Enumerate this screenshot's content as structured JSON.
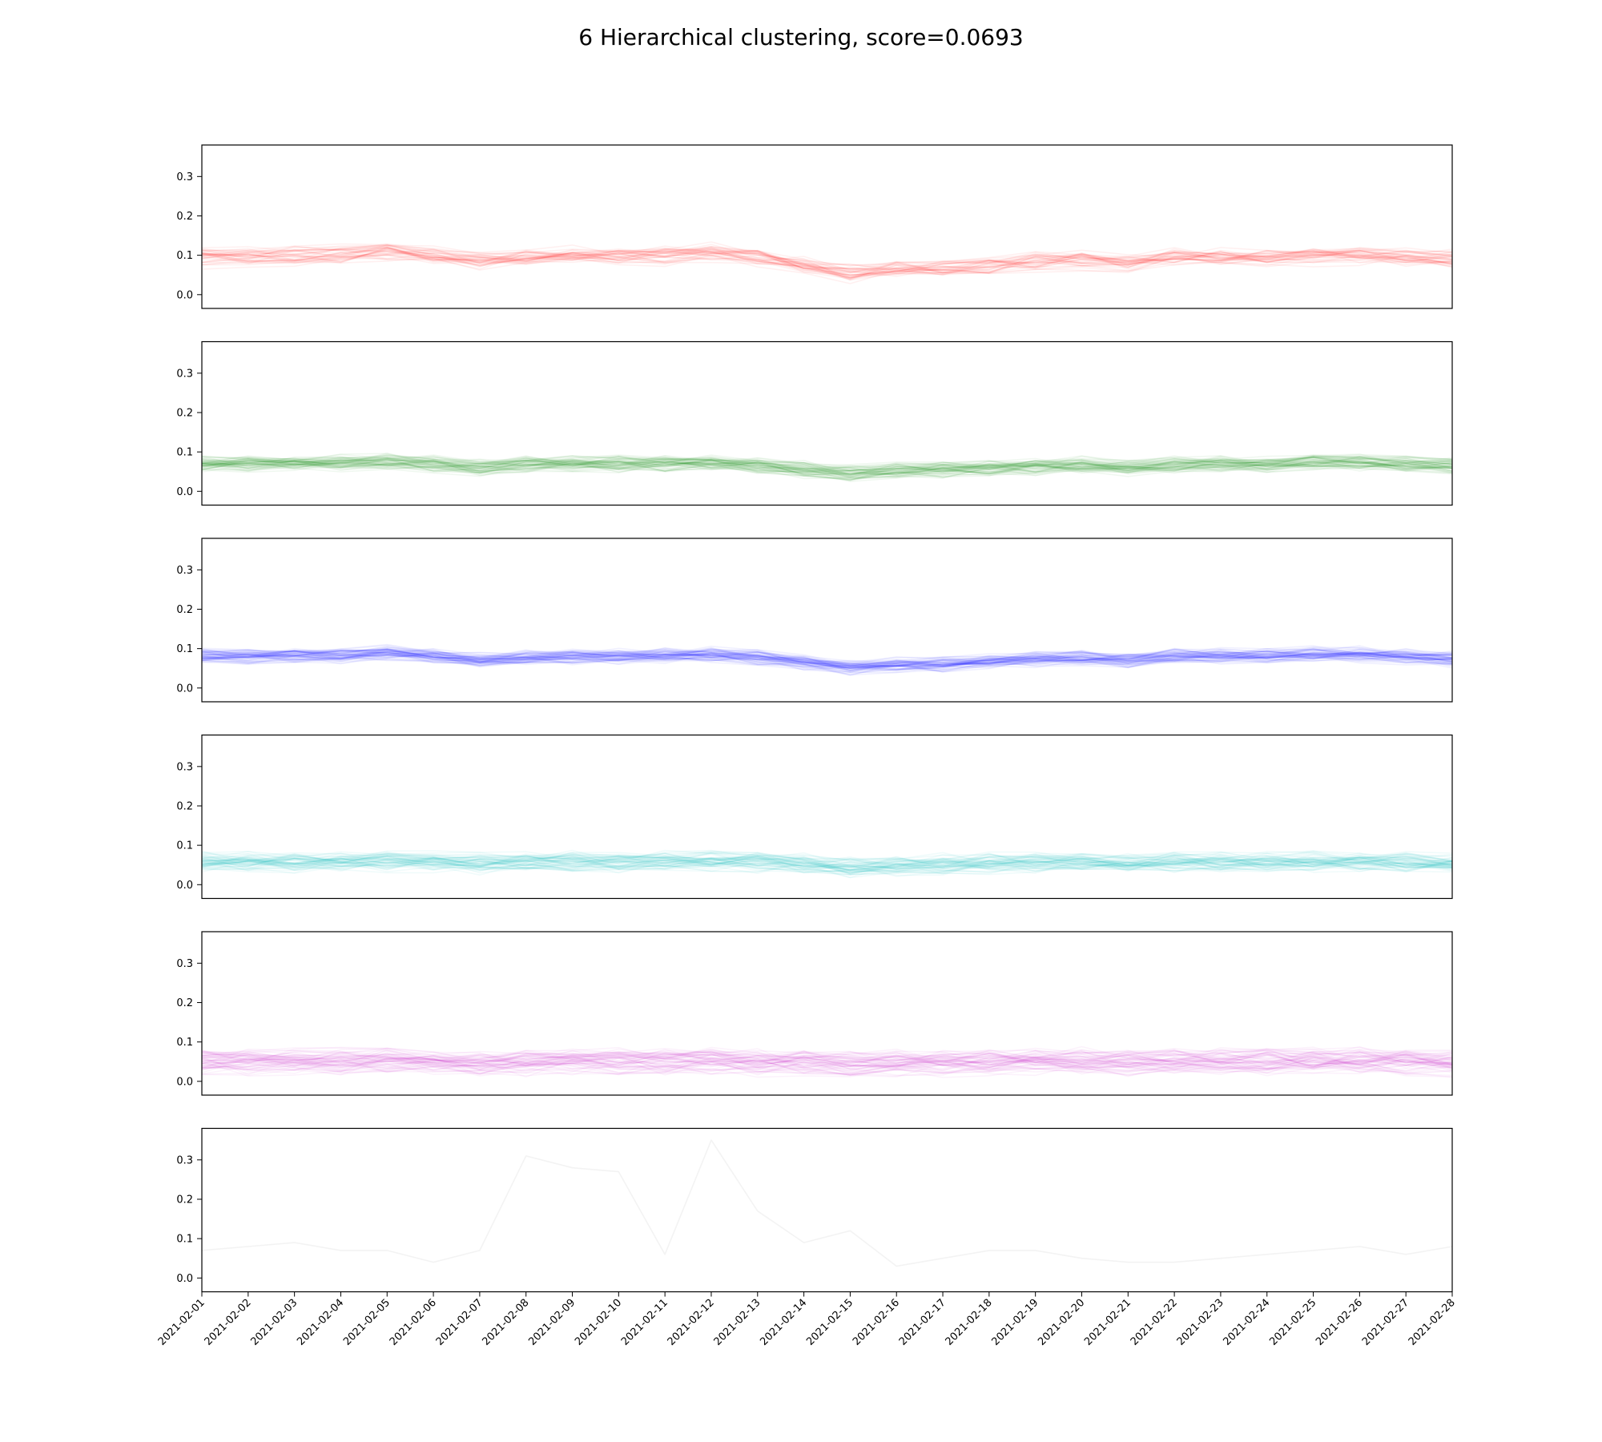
{
  "title": "6 Hierarchical clustering, score=0.0693",
  "chart_data": {
    "type": "line",
    "title": "6 Hierarchical clustering, score=0.0693",
    "x": [
      "2021-02-01",
      "2021-02-02",
      "2021-02-03",
      "2021-02-04",
      "2021-02-05",
      "2021-02-06",
      "2021-02-07",
      "2021-02-08",
      "2021-02-09",
      "2021-02-10",
      "2021-02-11",
      "2021-02-12",
      "2021-02-13",
      "2021-02-14",
      "2021-02-15",
      "2021-02-16",
      "2021-02-17",
      "2021-02-18",
      "2021-02-19",
      "2021-02-20",
      "2021-02-21",
      "2021-02-22",
      "2021-02-23",
      "2021-02-24",
      "2021-02-25",
      "2021-02-26",
      "2021-02-27",
      "2021-02-28"
    ],
    "ylim": [
      -0.035,
      0.38
    ],
    "yticks": [
      "0.0",
      "0.1",
      "0.2",
      "0.3"
    ],
    "grid": false,
    "panels": [
      {
        "color": "#ff0000",
        "alpha": 0.06,
        "line_count": 40,
        "noise": 0.022,
        "center": [
          0.095,
          0.098,
          0.1,
          0.102,
          0.108,
          0.1,
          0.085,
          0.095,
          0.1,
          0.098,
          0.1,
          0.105,
          0.095,
          0.075,
          0.055,
          0.065,
          0.068,
          0.075,
          0.085,
          0.09,
          0.08,
          0.095,
          0.095,
          0.095,
          0.1,
          0.1,
          0.095,
          0.088
        ]
      },
      {
        "color": "#008000",
        "alpha": 0.06,
        "line_count": 60,
        "noise": 0.018,
        "center": [
          0.07,
          0.07,
          0.072,
          0.072,
          0.075,
          0.07,
          0.06,
          0.068,
          0.07,
          0.07,
          0.07,
          0.072,
          0.065,
          0.055,
          0.045,
          0.052,
          0.055,
          0.058,
          0.062,
          0.065,
          0.058,
          0.068,
          0.07,
          0.07,
          0.072,
          0.072,
          0.068,
          0.062
        ]
      },
      {
        "color": "#0000ff",
        "alpha": 0.06,
        "line_count": 60,
        "noise": 0.016,
        "center": [
          0.08,
          0.08,
          0.082,
          0.082,
          0.088,
          0.082,
          0.072,
          0.078,
          0.08,
          0.08,
          0.082,
          0.085,
          0.078,
          0.065,
          0.05,
          0.058,
          0.06,
          0.068,
          0.072,
          0.075,
          0.07,
          0.08,
          0.082,
          0.082,
          0.085,
          0.085,
          0.08,
          0.072
        ]
      },
      {
        "color": "#00bfbf",
        "alpha": 0.06,
        "line_count": 60,
        "noise": 0.022,
        "center": [
          0.058,
          0.058,
          0.058,
          0.06,
          0.06,
          0.058,
          0.055,
          0.058,
          0.058,
          0.058,
          0.058,
          0.06,
          0.058,
          0.052,
          0.045,
          0.05,
          0.052,
          0.055,
          0.056,
          0.058,
          0.055,
          0.058,
          0.058,
          0.058,
          0.058,
          0.058,
          0.056,
          0.055
        ]
      },
      {
        "color": "#bf00bf",
        "alpha": 0.05,
        "line_count": 60,
        "noise": 0.028,
        "center": [
          0.05,
          0.05,
          0.048,
          0.05,
          0.052,
          0.048,
          0.045,
          0.048,
          0.05,
          0.05,
          0.048,
          0.05,
          0.046,
          0.045,
          0.042,
          0.045,
          0.046,
          0.048,
          0.05,
          0.05,
          0.046,
          0.05,
          0.05,
          0.05,
          0.05,
          0.05,
          0.048,
          0.046
        ]
      },
      {
        "color": "#999999",
        "alpha": 0.12,
        "line_count": 1,
        "noise": 0,
        "center": [
          0.07,
          0.08,
          0.09,
          0.07,
          0.07,
          0.04,
          0.07,
          0.31,
          0.28,
          0.27,
          0.06,
          0.35,
          0.17,
          0.09,
          0.12,
          0.03,
          0.05,
          0.07,
          0.07,
          0.05,
          0.04,
          0.04,
          0.05,
          0.06,
          0.07,
          0.08,
          0.06,
          0.08
        ]
      }
    ]
  }
}
